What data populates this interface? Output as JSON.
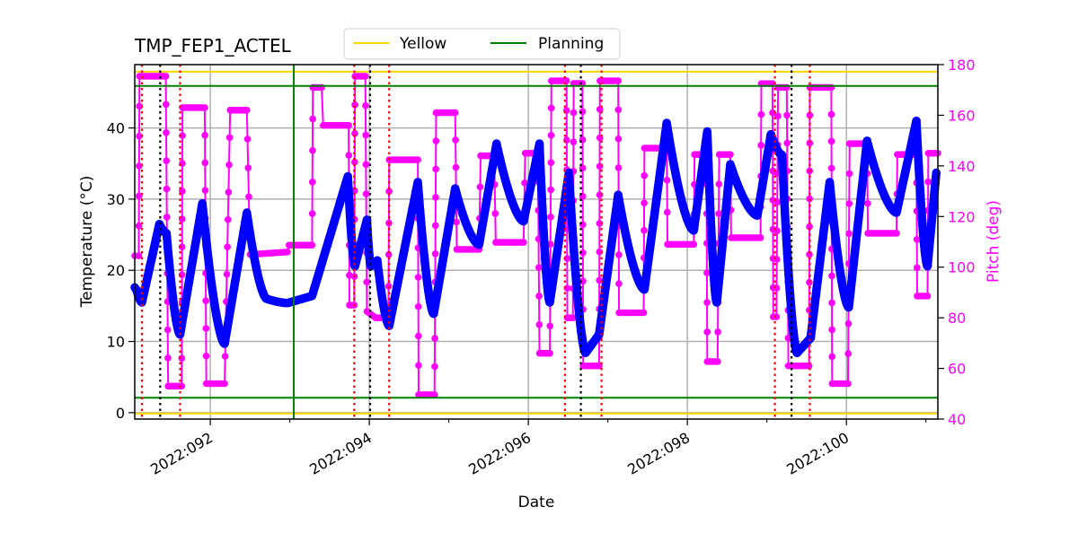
{
  "chart_data": {
    "type": "line",
    "title": "TMP_FEP1_ACTEL",
    "xlabel": "Date",
    "ylabel": "Temperature (°C)",
    "y2label": "Pitch (deg)",
    "xlim": [
      91.05,
      101.15
    ],
    "ylim": [
      -0.9,
      48.9
    ],
    "y2lim": [
      40,
      180
    ],
    "x_ticks": [
      {
        "value": 92,
        "label": "2022:092"
      },
      {
        "value": 94,
        "label": "2022:094"
      },
      {
        "value": 96,
        "label": "2022:096"
      },
      {
        "value": 98,
        "label": "2022:098"
      },
      {
        "value": 100,
        "label": "2022:100"
      }
    ],
    "x_minor_ticks": [
      93,
      95,
      97,
      99,
      101
    ],
    "y_ticks": [
      0,
      10,
      20,
      30,
      40
    ],
    "y2_ticks": [
      40,
      60,
      80,
      100,
      120,
      140,
      160,
      180
    ],
    "grid": true,
    "legend": {
      "placement": "top-center, above plot",
      "entries": [
        {
          "name": "Yellow",
          "color": "#ffd700"
        },
        {
          "name": "Planning",
          "color": "#008000"
        }
      ]
    },
    "colors": {
      "temperature": "#0000ff",
      "pitch": "#ff00ff",
      "yellow": "#ffd700",
      "planning": "#008000",
      "red_marker": "#ff0000",
      "black_marker": "#000000",
      "grid": "#b0b0b0"
    },
    "limit_lines": {
      "yellow": [
        47.9,
        0.0
      ],
      "planning": [
        45.9,
        2.1
      ]
    },
    "planning_vertical_line_day": 93.05,
    "red_dotted_lines_day": [
      91.14,
      91.62,
      93.81,
      94.25,
      96.46,
      96.92,
      99.1,
      99.54
    ],
    "black_dotted_lines_day": [
      91.37,
      94.01,
      96.66,
      99.31
    ],
    "temperature_series": [
      [
        91.05,
        17.6
      ],
      [
        91.07,
        17.3
      ],
      [
        91.14,
        15.5
      ],
      [
        91.36,
        26.5
      ],
      [
        91.45,
        25.2
      ],
      [
        91.62,
        11.0
      ],
      [
        91.9,
        29.4
      ],
      [
        92.18,
        9.7
      ],
      [
        92.46,
        28.1
      ],
      [
        92.71,
        16.0
      ],
      [
        92.97,
        15.4
      ],
      [
        93.28,
        16.4
      ],
      [
        93.73,
        33.2
      ],
      [
        93.82,
        20.6
      ],
      [
        93.97,
        27.1
      ],
      [
        94.02,
        20.6
      ],
      [
        94.1,
        21.4
      ],
      [
        94.25,
        12.2
      ],
      [
        94.61,
        32.4
      ],
      [
        94.81,
        13.9
      ],
      [
        95.08,
        31.5
      ],
      [
        95.38,
        23.6
      ],
      [
        95.6,
        37.8
      ],
      [
        95.94,
        26.9
      ],
      [
        96.14,
        37.8
      ],
      [
        96.27,
        15.5
      ],
      [
        96.51,
        33.7
      ],
      [
        96.72,
        8.4
      ],
      [
        96.89,
        11.0
      ],
      [
        97.13,
        30.6
      ],
      [
        97.46,
        17.3
      ],
      [
        97.74,
        40.7
      ],
      [
        98.08,
        25.6
      ],
      [
        98.25,
        39.5
      ],
      [
        98.37,
        15.5
      ],
      [
        98.54,
        34.9
      ],
      [
        98.88,
        27.7
      ],
      [
        99.05,
        39.1
      ],
      [
        99.19,
        36.2
      ],
      [
        99.38,
        8.4
      ],
      [
        99.55,
        10.5
      ],
      [
        99.79,
        32.4
      ],
      [
        100.03,
        14.8
      ],
      [
        100.26,
        38.2
      ],
      [
        100.63,
        28.1
      ],
      [
        100.88,
        41.0
      ],
      [
        101.02,
        20.6
      ],
      [
        101.13,
        33.7
      ]
    ],
    "pitch_series": [
      [
        91.05,
        104.5
      ],
      [
        91.1,
        104.5
      ],
      [
        91.11,
        175.4
      ],
      [
        91.44,
        175.4
      ],
      [
        91.47,
        53
      ],
      [
        91.64,
        53
      ],
      [
        91.65,
        163
      ],
      [
        91.93,
        163
      ],
      [
        91.95,
        54
      ],
      [
        92.18,
        54
      ],
      [
        92.25,
        162
      ],
      [
        92.46,
        162
      ],
      [
        92.5,
        105
      ],
      [
        92.97,
        106
      ],
      [
        92.99,
        108.7
      ],
      [
        93.28,
        108.7
      ],
      [
        93.29,
        171
      ],
      [
        93.4,
        171
      ],
      [
        93.42,
        156
      ],
      [
        93.74,
        156
      ],
      [
        93.75,
        85
      ],
      [
        93.81,
        85
      ],
      [
        93.82,
        175.4
      ],
      [
        93.95,
        175.4
      ],
      [
        93.97,
        82.5
      ],
      [
        94.08,
        80
      ],
      [
        94.24,
        80
      ],
      [
        94.25,
        142.4
      ],
      [
        94.61,
        142.4
      ],
      [
        94.62,
        49.6
      ],
      [
        94.82,
        49.6
      ],
      [
        94.84,
        161
      ],
      [
        95.08,
        161
      ],
      [
        95.1,
        107
      ],
      [
        95.38,
        107
      ],
      [
        95.4,
        144
      ],
      [
        95.57,
        144
      ],
      [
        95.59,
        109.8
      ],
      [
        95.94,
        109.8
      ],
      [
        95.96,
        145
      ],
      [
        96.12,
        145
      ],
      [
        96.14,
        66
      ],
      [
        96.27,
        66
      ],
      [
        96.29,
        173.6
      ],
      [
        96.48,
        173.6
      ],
      [
        96.49,
        80
      ],
      [
        96.56,
        80
      ],
      [
        96.57,
        172.6
      ],
      [
        96.68,
        172.6
      ],
      [
        96.69,
        61
      ],
      [
        96.89,
        61
      ],
      [
        96.9,
        173.6
      ],
      [
        97.13,
        173.6
      ],
      [
        97.14,
        82
      ],
      [
        97.45,
        82
      ],
      [
        97.46,
        147
      ],
      [
        97.74,
        147
      ],
      [
        97.75,
        109
      ],
      [
        98.08,
        109
      ],
      [
        98.09,
        144.5
      ],
      [
        98.24,
        144.5
      ],
      [
        98.25,
        62.7
      ],
      [
        98.38,
        62.7
      ],
      [
        98.4,
        144.5
      ],
      [
        98.54,
        144.5
      ],
      [
        98.55,
        111.6
      ],
      [
        98.92,
        111.6
      ],
      [
        98.93,
        172.5
      ],
      [
        99.07,
        172.5
      ],
      [
        99.08,
        80.4
      ],
      [
        99.12,
        80.4
      ],
      [
        99.14,
        171
      ],
      [
        99.25,
        171
      ],
      [
        99.27,
        61
      ],
      [
        99.53,
        61
      ],
      [
        99.54,
        171
      ],
      [
        99.81,
        171
      ],
      [
        99.82,
        54
      ],
      [
        100.02,
        54
      ],
      [
        100.04,
        148.8
      ],
      [
        100.26,
        148.8
      ],
      [
        100.27,
        113.4
      ],
      [
        100.63,
        113.4
      ],
      [
        100.64,
        144.5
      ],
      [
        100.88,
        144.5
      ],
      [
        100.89,
        88.6
      ],
      [
        101.02,
        88.6
      ],
      [
        101.03,
        145
      ],
      [
        101.15,
        145
      ]
    ]
  }
}
